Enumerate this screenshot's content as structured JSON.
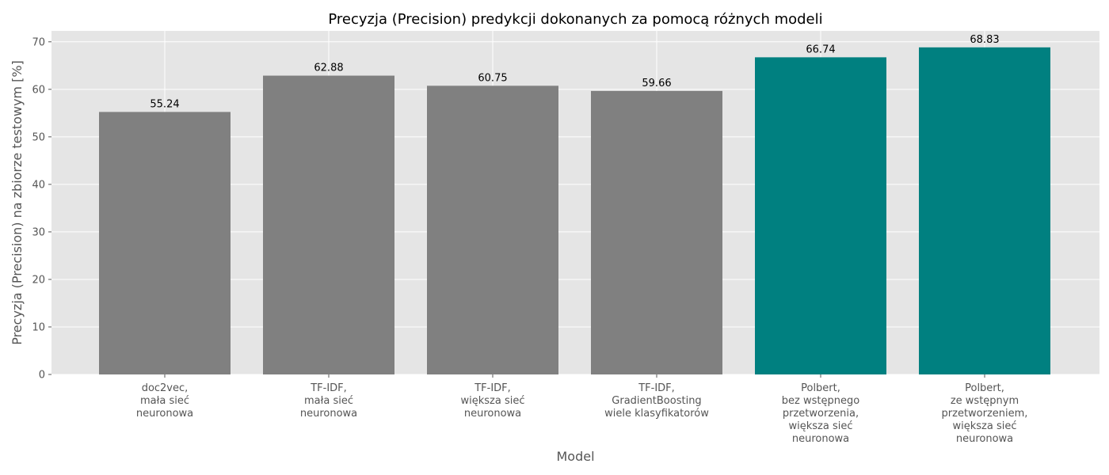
{
  "chart_data": {
    "type": "bar",
    "title": "Precyzja (Precision) predykcji dokonanych za pomocą różnych modeli",
    "xlabel": "Model",
    "ylabel": "Precyzja (Precision) na zbiorze testowym [%]",
    "categories": [
      [
        "doc2vec,",
        "mała sieć",
        "neuronowa"
      ],
      [
        "TF-IDF,",
        "mała sieć",
        "neuronowa"
      ],
      [
        "TF-IDF,",
        "większa sieć",
        "neuronowa"
      ],
      [
        "TF-IDF,",
        "GradientBoosting",
        "wiele klasyfikatorów"
      ],
      [
        "Polbert,",
        "bez wstępnego",
        "przetworzenia,",
        "większa sieć",
        "neuronowa"
      ],
      [
        "Polbert,",
        "ze wstępnym",
        "przetworzeniem,",
        "większa sieć",
        "neuronowa"
      ]
    ],
    "values": [
      55.24,
      62.88,
      60.75,
      59.66,
      66.74,
      68.83
    ],
    "value_labels": [
      "55.24",
      "62.88",
      "60.75",
      "59.66",
      "66.74",
      "68.83"
    ],
    "bar_colors": [
      "#808080",
      "#808080",
      "#808080",
      "#808080",
      "#008080",
      "#008080"
    ],
    "ylim": [
      0,
      72.3
    ],
    "yticks": [
      0,
      10,
      20,
      30,
      40,
      50,
      60,
      70
    ],
    "grid": true,
    "background": "#e5e5e5",
    "grid_color": "#ffffff"
  }
}
